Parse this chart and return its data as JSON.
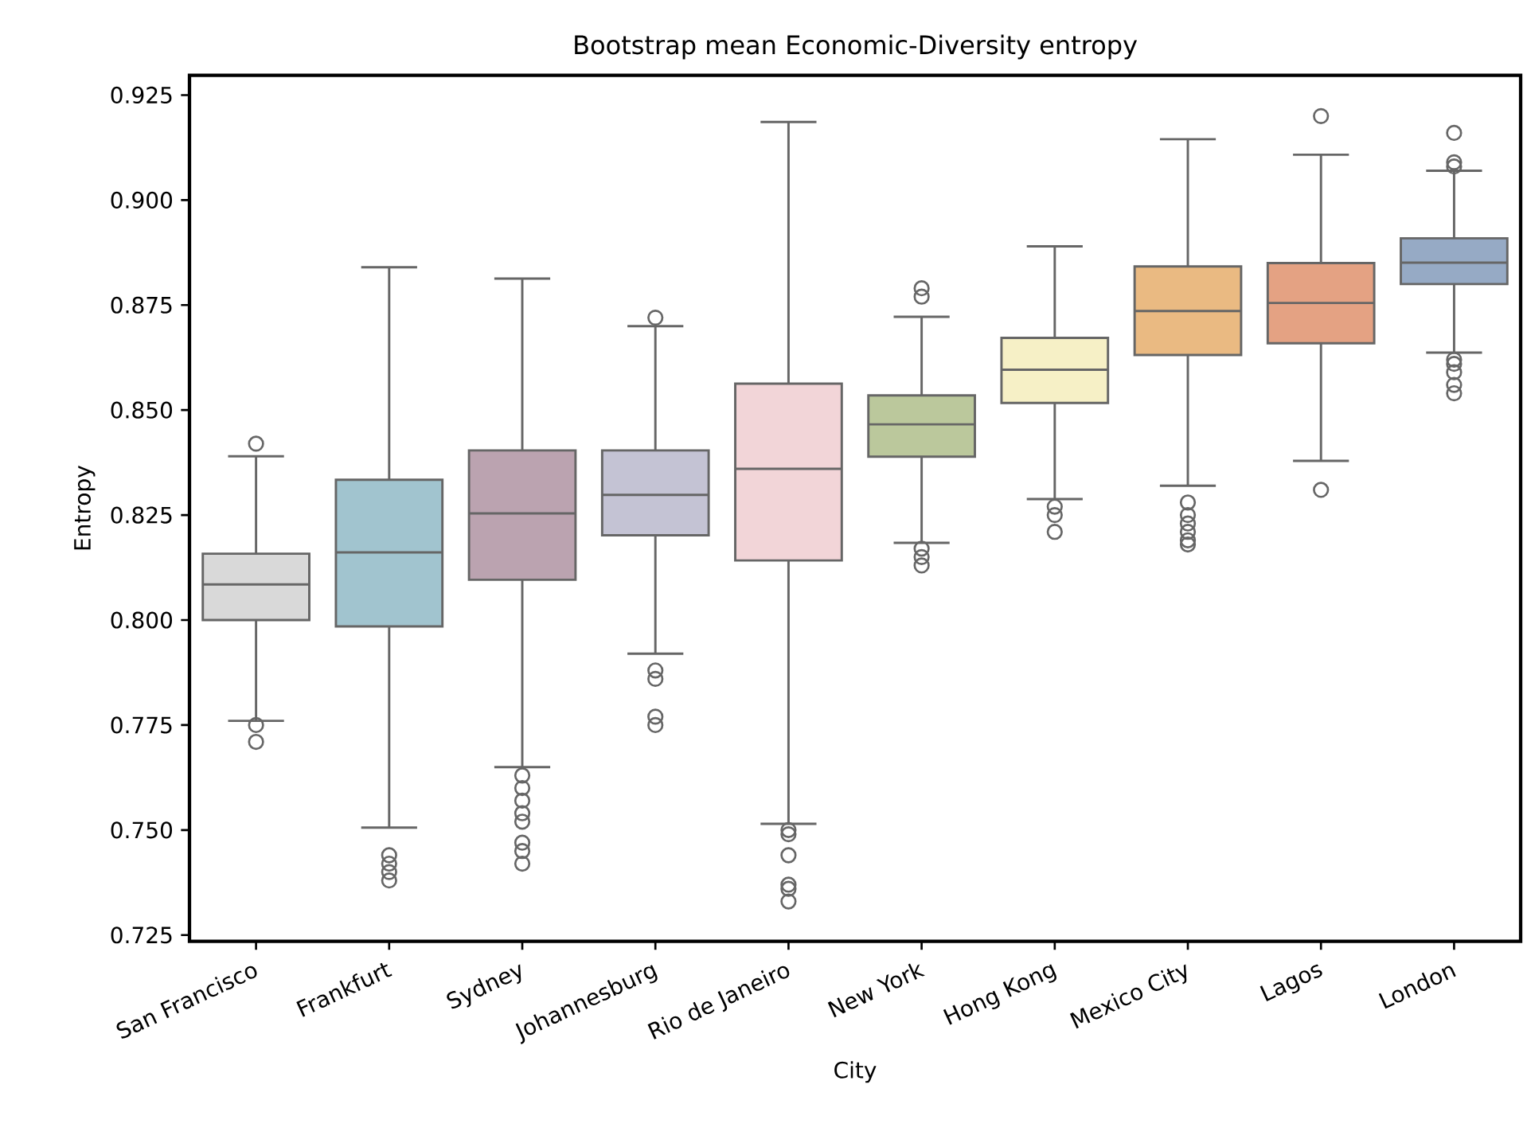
{
  "chart_data": {
    "type": "box",
    "title": "Bootstrap mean Economic-Diversity entropy",
    "xlabel": "City",
    "ylabel": "Entropy",
    "categories": [
      "San Francisco",
      "Frankfurt",
      "Sydney",
      "Johannesburg",
      "Rio de Janeiro",
      "New York",
      "Hong Kong",
      "Mexico City",
      "Lagos",
      "London"
    ],
    "colors": [
      "#d9d9d9",
      "#a1c4cf",
      "#bba3b0",
      "#c4c3d4",
      "#f2d5d8",
      "#bbc89c",
      "#f6f0c6",
      "#eaba82",
      "#e4a283",
      "#96aac5"
    ],
    "boxes": [
      {
        "low": 0.776,
        "q1": 0.8,
        "median": 0.8085,
        "q3": 0.8158,
        "high": 0.839,
        "outliers": [
          0.842,
          0.775,
          0.771
        ]
      },
      {
        "low": 0.7506,
        "q1": 0.7985,
        "median": 0.8161,
        "q3": 0.8334,
        "high": 0.884,
        "outliers": [
          0.744,
          0.742,
          0.74,
          0.738
        ]
      },
      {
        "low": 0.765,
        "q1": 0.8096,
        "median": 0.8254,
        "q3": 0.8404,
        "high": 0.8813,
        "outliers": [
          0.763,
          0.76,
          0.757,
          0.754,
          0.752,
          0.747,
          0.745,
          0.742
        ]
      },
      {
        "low": 0.792,
        "q1": 0.8202,
        "median": 0.8298,
        "q3": 0.8404,
        "high": 0.87,
        "outliers": [
          0.872,
          0.788,
          0.786,
          0.777,
          0.775
        ]
      },
      {
        "low": 0.7515,
        "q1": 0.8142,
        "median": 0.836,
        "q3": 0.8563,
        "high": 0.9186,
        "outliers": [
          0.75,
          0.749,
          0.744,
          0.737,
          0.736,
          0.733
        ]
      },
      {
        "low": 0.8184,
        "q1": 0.8389,
        "median": 0.8466,
        "q3": 0.8535,
        "high": 0.8722,
        "outliers": [
          0.879,
          0.877,
          0.817,
          0.815,
          0.813
        ]
      },
      {
        "low": 0.8288,
        "q1": 0.8517,
        "median": 0.8596,
        "q3": 0.8672,
        "high": 0.889,
        "outliers": [
          0.827,
          0.825,
          0.821
        ]
      },
      {
        "low": 0.832,
        "q1": 0.8631,
        "median": 0.8736,
        "q3": 0.8842,
        "high": 0.9145,
        "outliers": [
          0.828,
          0.825,
          0.823,
          0.821,
          0.819,
          0.818
        ]
      },
      {
        "low": 0.8379,
        "q1": 0.8659,
        "median": 0.8755,
        "q3": 0.885,
        "high": 0.9108,
        "outliers": [
          0.92,
          0.831
        ]
      },
      {
        "low": 0.8637,
        "q1": 0.88,
        "median": 0.8851,
        "q3": 0.8909,
        "high": 0.907,
        "outliers": [
          0.916,
          0.909,
          0.908,
          0.862,
          0.861,
          0.859,
          0.856,
          0.854
        ]
      }
    ],
    "ylim": [
      0.7235,
      0.9297
    ],
    "yticks": [
      0.725,
      {
        "value": 0.75,
        "label": "0.750"
      },
      0.775,
      {
        "value": 0.8,
        "label": "0.800"
      },
      0.825,
      {
        "value": 0.85,
        "label": "0.850"
      },
      0.875,
      {
        "value": 0.9,
        "label": "0.900"
      },
      0.925
    ]
  }
}
